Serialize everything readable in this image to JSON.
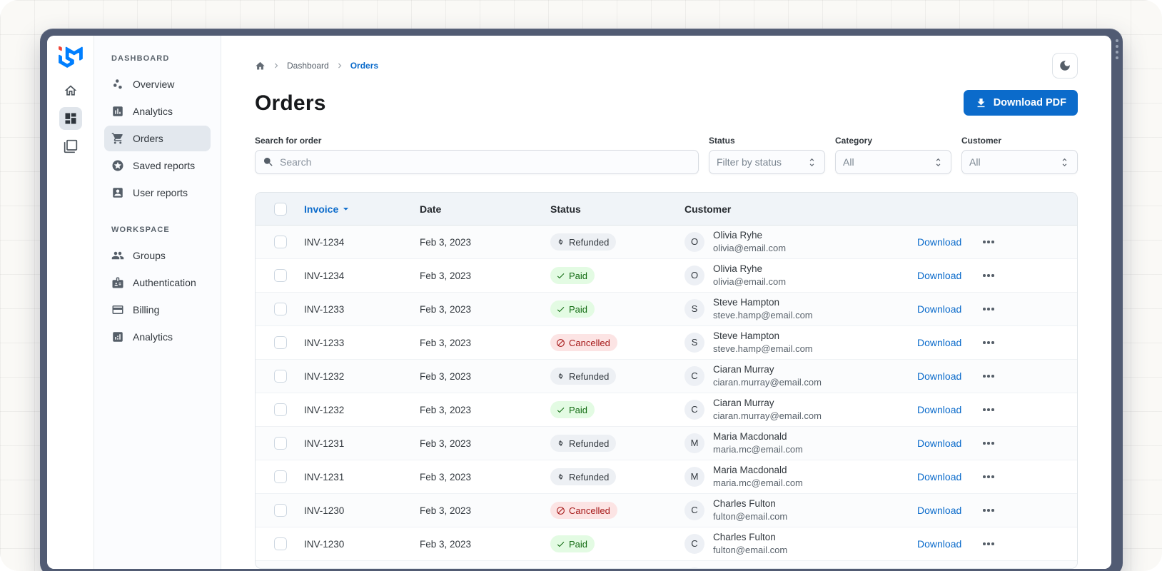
{
  "window_title": "Order dashboard",
  "rail": {
    "logo_icon": "mui-logo",
    "items": [
      {
        "icon": "home",
        "selected": false
      },
      {
        "icon": "dashboard-grid",
        "selected": true
      },
      {
        "icon": "window-stack",
        "selected": false
      }
    ]
  },
  "sidebar": {
    "sections": [
      {
        "label": "DASHBOARD",
        "items": [
          {
            "label": "Overview",
            "icon": "scatter",
            "selected": false
          },
          {
            "label": "Analytics",
            "icon": "assessment",
            "selected": false
          },
          {
            "label": "Orders",
            "icon": "cart",
            "selected": true
          },
          {
            "label": "Saved reports",
            "icon": "star-circle",
            "selected": false
          },
          {
            "label": "User reports",
            "icon": "account-box",
            "selected": false
          }
        ]
      },
      {
        "label": "WORKSPACE",
        "items": [
          {
            "label": "Groups",
            "icon": "people",
            "selected": false
          },
          {
            "label": "Authentication",
            "icon": "badge",
            "selected": false
          },
          {
            "label": "Billing",
            "icon": "credit-card",
            "selected": false
          },
          {
            "label": "Analytics",
            "icon": "analytics",
            "selected": false
          }
        ]
      }
    ]
  },
  "breadcrumb": {
    "items": [
      {
        "label": "Dashboard"
      },
      {
        "label": "Orders"
      }
    ]
  },
  "header": {
    "title": "Orders",
    "download_button": "Download PDF"
  },
  "filters": {
    "search_label": "Search for order",
    "search_placeholder": "Search",
    "selects": [
      {
        "label": "Status",
        "value": "Filter by status"
      },
      {
        "label": "Category",
        "value": "All"
      },
      {
        "label": "Customer",
        "value": "All"
      }
    ]
  },
  "table": {
    "columns": [
      "Invoice",
      "Date",
      "Status",
      "Customer"
    ],
    "sorted_column": "Invoice",
    "download_label": "Download",
    "status_icons": {
      "Paid": "check",
      "Refunded": "autorenew",
      "Cancelled": "block"
    },
    "rows": [
      {
        "invoice": "INV-1234",
        "date": "Feb 3, 2023",
        "status": "Refunded",
        "initial": "O",
        "name": "Olivia Ryhe",
        "email": "olivia@email.com"
      },
      {
        "invoice": "INV-1234",
        "date": "Feb 3, 2023",
        "status": "Paid",
        "initial": "O",
        "name": "Olivia Ryhe",
        "email": "olivia@email.com"
      },
      {
        "invoice": "INV-1233",
        "date": "Feb 3, 2023",
        "status": "Paid",
        "initial": "S",
        "name": "Steve Hampton",
        "email": "steve.hamp@email.com"
      },
      {
        "invoice": "INV-1233",
        "date": "Feb 3, 2023",
        "status": "Cancelled",
        "initial": "S",
        "name": "Steve Hampton",
        "email": "steve.hamp@email.com"
      },
      {
        "invoice": "INV-1232",
        "date": "Feb 3, 2023",
        "status": "Refunded",
        "initial": "C",
        "name": "Ciaran Murray",
        "email": "ciaran.murray@email.com"
      },
      {
        "invoice": "INV-1232",
        "date": "Feb 3, 2023",
        "status": "Paid",
        "initial": "C",
        "name": "Ciaran Murray",
        "email": "ciaran.murray@email.com"
      },
      {
        "invoice": "INV-1231",
        "date": "Feb 3, 2023",
        "status": "Refunded",
        "initial": "M",
        "name": "Maria Macdonald",
        "email": "maria.mc@email.com"
      },
      {
        "invoice": "INV-1231",
        "date": "Feb 3, 2023",
        "status": "Refunded",
        "initial": "M",
        "name": "Maria Macdonald",
        "email": "maria.mc@email.com"
      },
      {
        "invoice": "INV-1230",
        "date": "Feb 3, 2023",
        "status": "Cancelled",
        "initial": "C",
        "name": "Charles Fulton",
        "email": "fulton@email.com"
      },
      {
        "invoice": "INV-1230",
        "date": "Feb 3, 2023",
        "status": "Paid",
        "initial": "C",
        "name": "Charles Fulton",
        "email": "fulton@email.com"
      },
      {
        "invoice": "",
        "date": "",
        "status": "",
        "initial": "",
        "name": "",
        "email": "",
        "partial": true
      }
    ]
  },
  "colors": {
    "primary": "#0b6bcb",
    "frame": "#515b73",
    "paid_bg": "#e3fbe3",
    "paid_fg": "#136c13",
    "refunded_bg": "#edf0f4",
    "refunded_fg": "#32383e",
    "cancelled_bg": "#fce4e4",
    "cancelled_fg": "#a51818",
    "logo_blue": "#007fff",
    "logo_red": "#f04438"
  }
}
